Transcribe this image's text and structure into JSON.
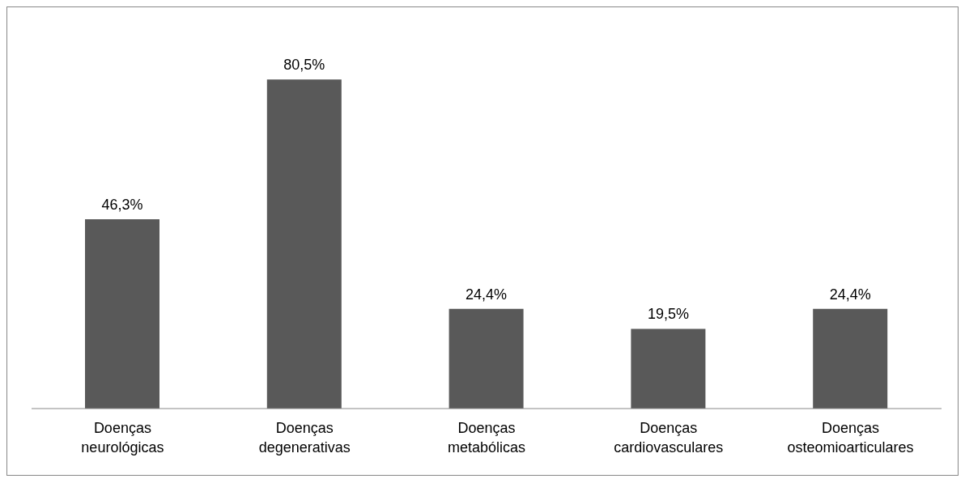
{
  "chart_data": {
    "type": "bar",
    "categories": [
      "Doenças neurológicas",
      "Doenças degenerativas",
      "Doenças metabólicas",
      "Doenças cardiovasculares",
      "Doenças osteomioarticulares"
    ],
    "values": [
      46.3,
      80.5,
      24.4,
      19.5,
      24.4
    ],
    "value_labels": [
      "46,3%",
      "80,5%",
      "24,4%",
      "19,5%",
      "24,4%"
    ],
    "color": "#595959",
    "grid": false,
    "legend": false
  }
}
